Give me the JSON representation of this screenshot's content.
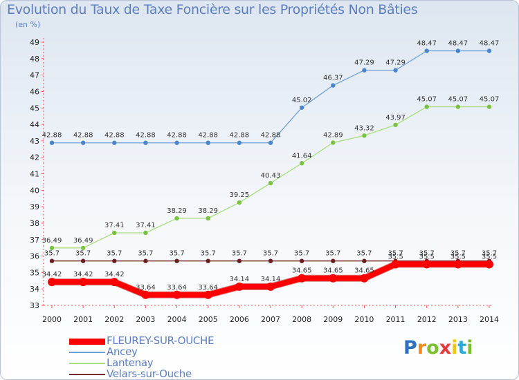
{
  "title": "Evolution du Taux de Taxe Foncière sur les Propriétés Non Bâties",
  "unit_label": "(en %)",
  "logo": {
    "text": "Proxiti",
    "colors": [
      "#2f6fc2",
      "#f28a1c",
      "#7cbf2e",
      "#e23b3b",
      "#f0c419",
      "#2fa7d8",
      "#7cbf2e"
    ]
  },
  "chart_data": {
    "type": "line",
    "title": "Evolution du Taux de Taxe Foncière sur les Propriétés Non Bâties",
    "ylabel": "(en %)",
    "xlabel": "",
    "ylim": [
      33,
      49
    ],
    "yticks": [
      "33",
      "34",
      "35",
      "36",
      "37",
      "38",
      "39",
      "40",
      "41",
      "42",
      "43",
      "44",
      "45",
      "46",
      "47",
      "48",
      "49"
    ],
    "x": [
      "2000",
      "2001",
      "2002",
      "2003",
      "2004",
      "2005",
      "2006",
      "2007",
      "2008",
      "2009",
      "2010",
      "2011",
      "2012",
      "2013",
      "2014"
    ],
    "series": [
      {
        "name": "FLEUREY-SUR-OUCHE",
        "color": "#ff0000",
        "values": [
          34.42,
          34.42,
          34.42,
          33.64,
          33.64,
          33.64,
          34.14,
          34.14,
          34.65,
          34.65,
          34.65,
          35.5,
          35.5,
          35.5,
          35.5
        ],
        "labels": [
          "34.42",
          "34.42",
          "34.42",
          "33.64",
          "33.64",
          "33.64",
          "34.14",
          "34.14",
          "34.65",
          "34.65",
          "34.65",
          "35.5",
          "35.5",
          "35.5",
          "35.5"
        ]
      },
      {
        "name": "Ancey",
        "color": "#6f9fd8",
        "values": [
          42.88,
          42.88,
          42.88,
          42.88,
          42.88,
          42.88,
          42.88,
          42.88,
          45.02,
          46.37,
          47.29,
          47.29,
          48.47,
          48.47,
          48.47
        ],
        "labels": [
          "42.88",
          "42.88",
          "42.88",
          "42.88",
          "42.88",
          "42.88",
          "42.88",
          "42.88",
          "45.02",
          "46.37",
          "47.29",
          "47.29",
          "48.47",
          "48.47",
          "48.47"
        ]
      },
      {
        "name": "Lantenay",
        "color": "#a9dc7c",
        "values": [
          36.49,
          36.49,
          37.41,
          37.41,
          38.29,
          38.29,
          39.25,
          40.43,
          41.64,
          42.89,
          43.32,
          43.97,
          45.07,
          45.07,
          45.07
        ],
        "labels": [
          "36.49",
          "36.49",
          "37.41",
          "37.41",
          "38.29",
          "38.29",
          "39.25",
          "40.43",
          "41.64",
          "42.89",
          "43.32",
          "43.97",
          "45.07",
          "45.07",
          "45.07"
        ]
      },
      {
        "name": "Velars-sur-Ouche",
        "color": "#7a2a2a",
        "values": [
          35.7,
          35.7,
          35.7,
          35.7,
          35.7,
          35.7,
          35.7,
          35.7,
          35.7,
          35.7,
          35.7,
          35.7,
          35.7,
          35.7,
          35.7
        ],
        "labels": [
          "35.7",
          "35.7",
          "35.7",
          "35.7",
          "35.7",
          "35.7",
          "35.7",
          "35.7",
          "35.7",
          "35.7",
          "35.7",
          "35.7",
          "35.7",
          "35.7",
          "35.7"
        ]
      }
    ],
    "legend": "bottom-left",
    "grid": false
  }
}
